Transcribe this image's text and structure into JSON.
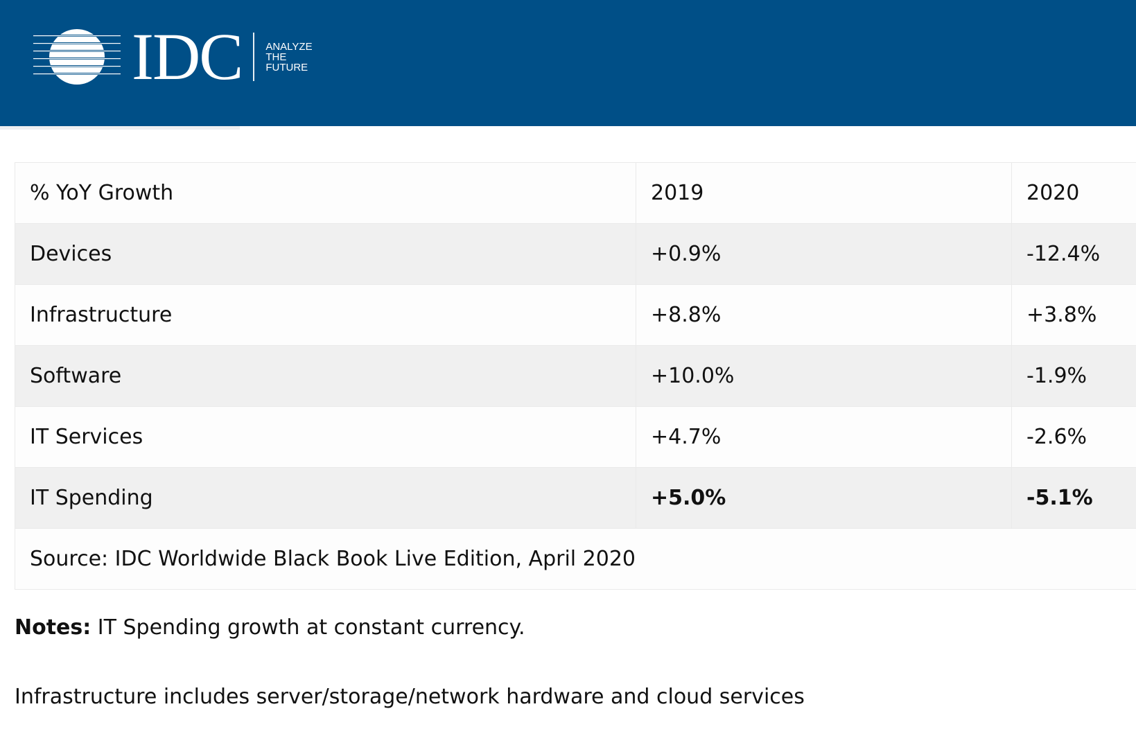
{
  "header": {
    "logo_text": "IDC",
    "tagline": [
      "ANALYZE",
      "THE",
      "FUTURE"
    ],
    "background": "#004f87"
  },
  "table": {
    "columns": [
      "% YoY Growth",
      "2019",
      "2020"
    ],
    "rows": [
      {
        "label": "Devices",
        "y2019": "+0.9%",
        "y2020": "-12.4%"
      },
      {
        "label": "Infrastructure",
        "y2019": "+8.8%",
        "y2020": "+3.8%"
      },
      {
        "label": "Software",
        "y2019": "+10.0%",
        "y2020": "-1.9%"
      },
      {
        "label": "IT Services",
        "y2019": "+4.7%",
        "y2020": "-2.6%"
      },
      {
        "label": "IT Spending",
        "y2019": "+5.0%",
        "y2020": "-5.1%"
      }
    ],
    "source": "Source: IDC Worldwide Black Book Live Edition, April 2020"
  },
  "notes": {
    "label": "Notes:",
    "text": " IT Spending growth at constant currency.",
    "infrastructure": "Infrastructure includes server/storage/network hardware and cloud services"
  }
}
